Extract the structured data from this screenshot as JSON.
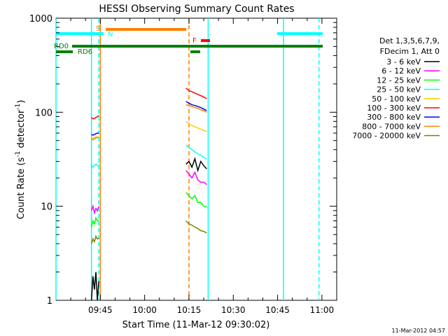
{
  "chart_data": {
    "type": "line",
    "title": "HESSI Observing Summary Count Rates",
    "xlabel": "Start Time (11-Mar-12 09:30:02)",
    "ylabel_main": "Count Rate (s",
    "ylabel_sup1": "-1",
    "ylabel_mid": " detector",
    "ylabel_sup2": "-1",
    "ylabel_end": ")",
    "timestamp": "11-Mar-2012 04:57",
    "x_unit": "minutes since 09:30:02",
    "xlim": [
      0,
      95
    ],
    "ylim": [
      1,
      1000
    ],
    "yscale": "log",
    "x_ticks": [
      {
        "label": "09:45",
        "value": 15
      },
      {
        "label": "10:00",
        "value": 30
      },
      {
        "label": "10:15",
        "value": 45
      },
      {
        "label": "10:30",
        "value": 60
      },
      {
        "label": "10:45",
        "value": 75
      },
      {
        "label": "11:00",
        "value": 90
      }
    ],
    "y_ticks": [
      {
        "label": "1",
        "value": 1
      },
      {
        "label": "10",
        "value": 10
      },
      {
        "label": "100",
        "value": 100
      },
      {
        "label": "1000",
        "value": 1000
      }
    ],
    "legend": {
      "header1": "Det 1,3,5,6,7,9,",
      "header2": "FDecim 1, Att 0",
      "placement": "right"
    },
    "series": [
      {
        "name": "3 - 6 keV",
        "color": "#000000",
        "values": [
          [
            12.0,
            1
          ],
          [
            12.5,
            1.8
          ],
          [
            13.0,
            1.3
          ],
          [
            13.5,
            2
          ],
          [
            14.0,
            1
          ],
          [
            14.5,
            1.6
          ],
          [
            44.0,
            28
          ],
          [
            45,
            30
          ],
          [
            46,
            26
          ],
          [
            47,
            32
          ],
          [
            48,
            24
          ],
          [
            49,
            30
          ],
          [
            50,
            27
          ],
          [
            51,
            25
          ]
        ]
      },
      {
        "name": "6 - 12 keV",
        "color": "#ff00ff",
        "values": [
          [
            12.0,
            9
          ],
          [
            12.5,
            10
          ],
          [
            13.0,
            8.5
          ],
          [
            13.5,
            9.5
          ],
          [
            14.0,
            9
          ],
          [
            14.5,
            10
          ],
          [
            44.0,
            24
          ],
          [
            45,
            22
          ],
          [
            46,
            20
          ],
          [
            47,
            23
          ],
          [
            48,
            19
          ],
          [
            49,
            18
          ],
          [
            50,
            18
          ],
          [
            51,
            17
          ]
        ]
      },
      {
        "name": "12 - 25 keV",
        "color": "#00ff00",
        "values": [
          [
            12.0,
            6
          ],
          [
            12.5,
            7
          ],
          [
            13.0,
            6.5
          ],
          [
            13.5,
            7.5
          ],
          [
            14.0,
            7
          ],
          [
            14.5,
            7
          ],
          [
            44.0,
            14
          ],
          [
            45,
            13
          ],
          [
            46,
            12
          ],
          [
            47,
            13
          ],
          [
            48,
            11
          ],
          [
            49,
            11
          ],
          [
            50,
            10
          ],
          [
            51,
            10
          ]
        ]
      },
      {
        "name": "25 - 50 keV",
        "color": "#00ffff",
        "values": [
          [
            12.0,
            27
          ],
          [
            12.5,
            26
          ],
          [
            13.0,
            27
          ],
          [
            13.5,
            28
          ],
          [
            14.0,
            27
          ],
          [
            14.5,
            27
          ],
          [
            44.0,
            45
          ],
          [
            45,
            42
          ],
          [
            46,
            40
          ],
          [
            47,
            38
          ],
          [
            48,
            36
          ],
          [
            49,
            35
          ],
          [
            50,
            33
          ],
          [
            51,
            32
          ]
        ]
      },
      {
        "name": "50 - 100 keV",
        "color": "#ffcc00",
        "values": [
          [
            12.0,
            52
          ],
          [
            12.5,
            54
          ],
          [
            13.0,
            53
          ],
          [
            13.5,
            55
          ],
          [
            14.0,
            54
          ],
          [
            14.5,
            55
          ],
          [
            44.0,
            80
          ],
          [
            45,
            75
          ],
          [
            46,
            72
          ],
          [
            47,
            70
          ],
          [
            48,
            68
          ],
          [
            49,
            66
          ],
          [
            50,
            64
          ],
          [
            51,
            62
          ]
        ]
      },
      {
        "name": "100 - 300 keV",
        "color": "#ff0000",
        "values": [
          [
            12.0,
            88
          ],
          [
            12.5,
            85
          ],
          [
            13.0,
            86
          ],
          [
            13.5,
            88
          ],
          [
            14.0,
            90
          ],
          [
            14.5,
            92
          ],
          [
            44.0,
            180
          ],
          [
            45,
            170
          ],
          [
            46,
            165
          ],
          [
            47,
            160
          ],
          [
            48,
            155
          ],
          [
            49,
            150
          ],
          [
            50,
            145
          ],
          [
            51,
            140
          ]
        ]
      },
      {
        "name": "300 - 800 keV",
        "color": "#0000ff",
        "values": [
          [
            12.0,
            58
          ],
          [
            12.5,
            57
          ],
          [
            13.0,
            58
          ],
          [
            13.5,
            59
          ],
          [
            14.0,
            60
          ],
          [
            14.5,
            60
          ],
          [
            44.0,
            130
          ],
          [
            45,
            125
          ],
          [
            46,
            120
          ],
          [
            47,
            118
          ],
          [
            48,
            115
          ],
          [
            49,
            112
          ],
          [
            50,
            108
          ],
          [
            51,
            104
          ]
        ]
      },
      {
        "name": "800 - 7000 keV",
        "color": "#ff8000",
        "values": [
          [
            12.0,
            52
          ],
          [
            12.5,
            51
          ],
          [
            13.0,
            52
          ],
          [
            13.5,
            53
          ],
          [
            14.0,
            54
          ],
          [
            14.5,
            54
          ],
          [
            44.0,
            120
          ],
          [
            45,
            118
          ],
          [
            46,
            115
          ],
          [
            47,
            112
          ],
          [
            48,
            110
          ],
          [
            49,
            106
          ],
          [
            50,
            104
          ],
          [
            51,
            100
          ]
        ]
      },
      {
        "name": "7000 - 20000 keV",
        "color": "#808000",
        "values": [
          [
            12.0,
            4
          ],
          [
            12.5,
            4.5
          ],
          [
            13.0,
            4.2
          ],
          [
            13.5,
            4.8
          ],
          [
            14.0,
            4.5
          ],
          [
            14.5,
            4.6
          ],
          [
            44.0,
            7
          ],
          [
            45,
            6.5
          ],
          [
            46,
            6.3
          ],
          [
            47,
            6
          ],
          [
            48,
            5.8
          ],
          [
            49,
            5.5
          ],
          [
            50,
            5.4
          ],
          [
            51,
            5.2
          ]
        ]
      }
    ],
    "markers": [
      {
        "label": "S",
        "color": "#ff8000"
      },
      {
        "label": "N",
        "color": "#00ffff"
      },
      {
        "label": "F",
        "color": "#ff0000"
      },
      {
        "label": "RD0",
        "color": "#008000"
      },
      {
        "label": "RD6",
        "color": "#008000"
      }
    ],
    "vlines": [
      {
        "x": 0,
        "color": "#00ffff",
        "dashed": false
      },
      {
        "x": 12,
        "color": "#00ffff",
        "dashed": false
      },
      {
        "x": 14.5,
        "color": "#00ffff",
        "dashed": true
      },
      {
        "x": 15,
        "color": "#ff8000",
        "dashed": false
      },
      {
        "x": 45,
        "color": "#ff8000",
        "dashed": true
      },
      {
        "x": 51.5,
        "color": "#00ffff",
        "dashed": false
      },
      {
        "x": 77,
        "color": "#00ffff",
        "dashed": false
      },
      {
        "x": 89,
        "color": "#00ffff",
        "dashed": true
      }
    ]
  }
}
